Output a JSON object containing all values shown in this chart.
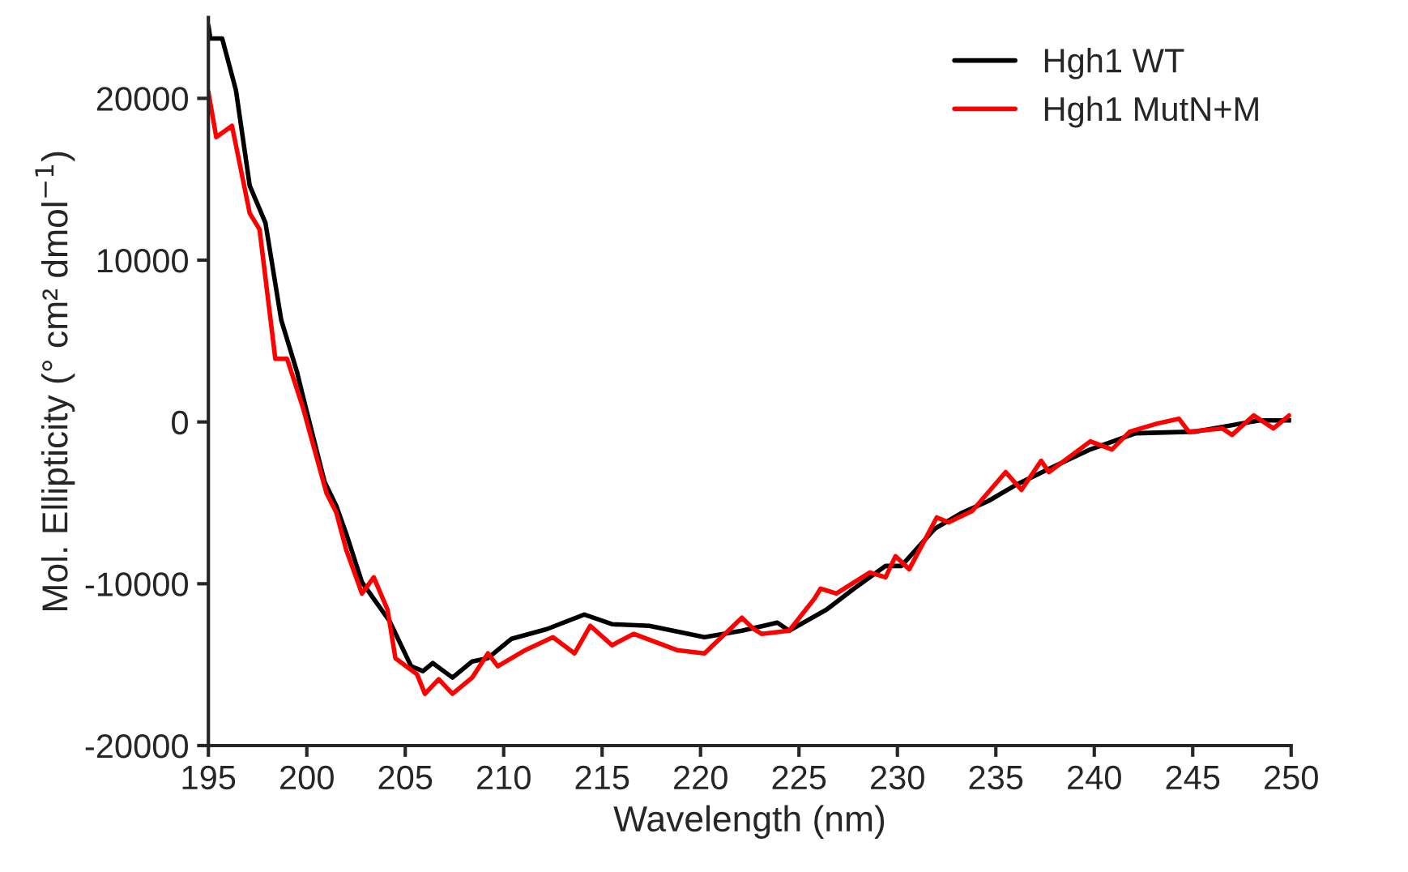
{
  "chart_data": {
    "type": "line",
    "xlabel": "Wavelength (nm)",
    "ylabel": "Mol. Ellipticity (° cm² dmol$^{−1}$)",
    "xlim": [
      195,
      250
    ],
    "xticks": [
      195,
      200,
      205,
      210,
      215,
      220,
      225,
      230,
      235,
      240,
      245,
      250
    ],
    "ylim": [
      -20000,
      25000
    ],
    "yticks": [
      -20000,
      -10000,
      0,
      10000,
      20000
    ],
    "grid": false,
    "legend": "top right",
    "line_style": "solid",
    "marker": "none",
    "series": [
      {
        "name": "Hgh1 WT",
        "color": "#000000",
        "x": [
          195,
          195.1,
          195.7,
          196.4,
          197.1,
          197.9,
          198.7,
          199.5,
          199.8,
          200.9,
          201.5,
          202.0,
          202.8,
          204.2,
          205.3,
          205.9,
          206.4,
          207.4,
          208.4,
          209.2,
          210.4,
          212.2,
          214.1,
          215.5,
          217.4,
          220.2,
          222.1,
          223.2,
          223.9,
          224.5,
          226.4,
          227.8,
          229.4,
          230.2,
          231.9,
          233.3,
          234.6,
          236.0,
          237.7,
          239.8,
          242.1,
          245.1,
          248.4,
          250
        ],
        "values": [
          24500,
          23700,
          23700,
          20500,
          14600,
          12300,
          6300,
          3100,
          1600,
          -3700,
          -5200,
          -6900,
          -9900,
          -12300,
          -15100,
          -15400,
          -14900,
          -15800,
          -14800,
          -14600,
          -13400,
          -12800,
          -11900,
          -12500,
          -12600,
          -13300,
          -12900,
          -12600,
          -12400,
          -12900,
          -11600,
          -10300,
          -8900,
          -8900,
          -6600,
          -5600,
          -4900,
          -3900,
          -2900,
          -1700,
          -700,
          -600,
          100,
          100
        ]
      },
      {
        "name": "Hgh1 MutN+M",
        "color": "#ff0000",
        "x": [
          195,
          195.4,
          196.2,
          197.1,
          197.6,
          198.4,
          199,
          199.8,
          201,
          201.5,
          202.0,
          202.8,
          203.4,
          204.1,
          204.5,
          205.6,
          206.0,
          206.7,
          207.4,
          208.4,
          209.2,
          209.7,
          211.1,
          212.5,
          213.6,
          214.4,
          215.5,
          216.6,
          218.8,
          220.2,
          222.1,
          222.7,
          223.1,
          224.5,
          225.8,
          226.1,
          226.9,
          228.6,
          229.4,
          229.9,
          230.6,
          232.0,
          232.6,
          233.8,
          235.5,
          236.3,
          237.3,
          237.7,
          239.8,
          240.9,
          241.8,
          243.2,
          244.3,
          244.8,
          246.5,
          247.0,
          248.1,
          249.1,
          249.9
        ],
        "values": [
          20400,
          17600,
          18300,
          12900,
          11900,
          3900,
          3900,
          900,
          -4400,
          -5600,
          -7900,
          -10600,
          -9600,
          -11600,
          -14600,
          -15600,
          -16800,
          -15900,
          -16800,
          -15800,
          -14300,
          -15100,
          -14100,
          -13300,
          -14300,
          -12600,
          -13800,
          -13100,
          -14100,
          -14300,
          -12100,
          -12800,
          -13100,
          -12900,
          -10900,
          -10300,
          -10600,
          -9300,
          -9600,
          -8300,
          -9100,
          -5900,
          -6200,
          -5500,
          -3100,
          -4200,
          -2400,
          -3100,
          -1200,
          -1700,
          -600,
          -100,
          200,
          -600,
          -400,
          -800,
          400,
          -400,
          400
        ]
      }
    ]
  }
}
